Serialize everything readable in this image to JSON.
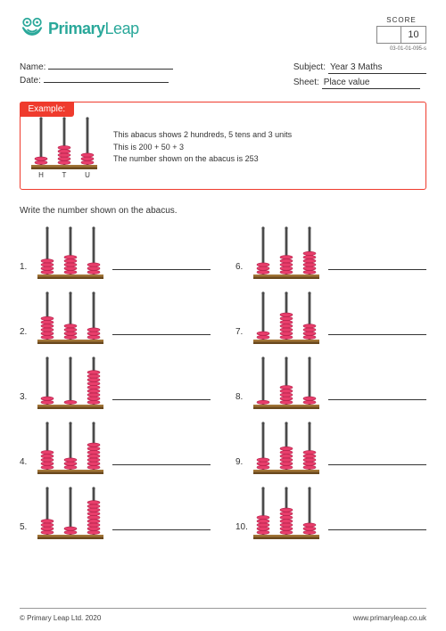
{
  "brand": {
    "primary": "Primary",
    "secondary": "Leap"
  },
  "score": {
    "label": "SCORE",
    "total": "10",
    "earned": ""
  },
  "doc_id": "03-01-01-095-s",
  "meta": {
    "name_label": "Name:",
    "date_label": "Date:",
    "subject_label": "Subject:",
    "sheet_label": "Sheet:",
    "subject_value": "Year 3 Maths",
    "sheet_value": "Place value"
  },
  "example": {
    "tag": "Example:",
    "line1": "This abacus shows 2 hundreds, 5 tens and 3 units",
    "line2": "This is 200 + 50 + 3",
    "line3": "The number shown on the abacus is 253",
    "labels": {
      "h": "H",
      "t": "T",
      "u": "U"
    },
    "beads": [
      2,
      5,
      3
    ]
  },
  "instruction": "Write the number shown on the abacus.",
  "style": {
    "bead_fill": "#e83e6b",
    "bead_stroke": "#b01d47",
    "rod_color": "#4a4a4a",
    "base_top": "#a07436",
    "base_bottom": "#6b4a1f",
    "accent": "#ef3b2d",
    "brand_color": "#2aa89a",
    "rod_height": 52,
    "bead_w": 14,
    "bead_h": 4.2,
    "rod_gap": 26,
    "base_h": 5
  },
  "problems": [
    {
      "n": "1.",
      "beads": [
        4,
        5,
        3
      ]
    },
    {
      "n": "6.",
      "beads": [
        3,
        5,
        6
      ]
    },
    {
      "n": "2.",
      "beads": [
        6,
        4,
        3
      ]
    },
    {
      "n": "7.",
      "beads": [
        2,
        7,
        4
      ]
    },
    {
      "n": "3.",
      "beads": [
        2,
        1,
        9
      ]
    },
    {
      "n": "8.",
      "beads": [
        1,
        5,
        2
      ]
    },
    {
      "n": "4.",
      "beads": [
        5,
        3,
        7
      ]
    },
    {
      "n": "9.",
      "beads": [
        3,
        6,
        5
      ]
    },
    {
      "n": "5.",
      "beads": [
        4,
        2,
        9
      ]
    },
    {
      "n": "10.",
      "beads": [
        5,
        7,
        3
      ]
    }
  ],
  "footer": {
    "copyright": "© Primary Leap Ltd. 2020",
    "url": "www.primaryleap.co.uk"
  }
}
